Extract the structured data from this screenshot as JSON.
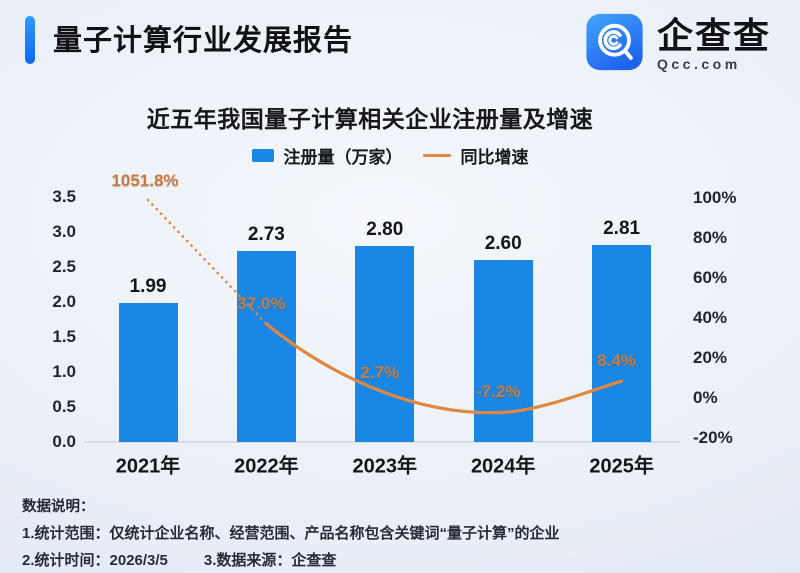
{
  "header": {
    "title": "量子计算行业发展报告",
    "logo": {
      "brand": "企查查",
      "domain": "Qcc.com",
      "icon": "qcc-magnifier-icon"
    }
  },
  "chart": {
    "title": "近五年我国量子计算相关企业注册量及增速"
  },
  "chart_data": {
    "type": "bar+line",
    "title": "近五年我国量子计算相关企业注册量及增速",
    "categories": [
      "2021年",
      "2022年",
      "2023年",
      "2024年",
      "2025年"
    ],
    "series": [
      {
        "name": "注册量（万家）",
        "type": "bar",
        "unit": "万家",
        "values": [
          1.99,
          2.73,
          2.8,
          2.6,
          2.81
        ],
        "labels": [
          "1.99",
          "2.73",
          "2.80",
          "2.60",
          "2.81"
        ],
        "color": "#1b87e4"
      },
      {
        "name": "同比增速",
        "type": "line",
        "unit": "%",
        "values": [
          1051.8,
          37.0,
          2.7,
          -7.2,
          8.4
        ],
        "labels": [
          "1051.8%",
          "37.0%",
          "2.7%",
          "-7.2%",
          "8.4%"
        ],
        "color": "#e2873f"
      }
    ],
    "left_axis": {
      "min": 0.0,
      "max": 3.5,
      "ticks": [
        "3.5",
        "3.0",
        "2.5",
        "2.0",
        "1.5",
        "1.0",
        "0.5",
        "0.0"
      ]
    },
    "right_axis": {
      "min": -20,
      "max": 100,
      "ticks": [
        "100%",
        "80%",
        "60%",
        "40%",
        "20%",
        "0%",
        "-20%"
      ]
    },
    "grid": false,
    "legend_position": "top",
    "note": "2021 growth value 1051.8% exceeds axis; drawn as dotted clamped segment"
  },
  "footer": {
    "heading": "数据说明：",
    "notes": [
      "1.统计范围：仅统计企业名称、经营范围、产品名称包含关键词“量子计算”的企业",
      "2.统计时间：2026/3/5",
      "3.数据来源：企查查"
    ]
  },
  "colors": {
    "bar": "#1b87e4",
    "line": "#e2873f",
    "accent": "#1677f8",
    "pct_label": "#c87c40",
    "background": "#e9eef7"
  }
}
